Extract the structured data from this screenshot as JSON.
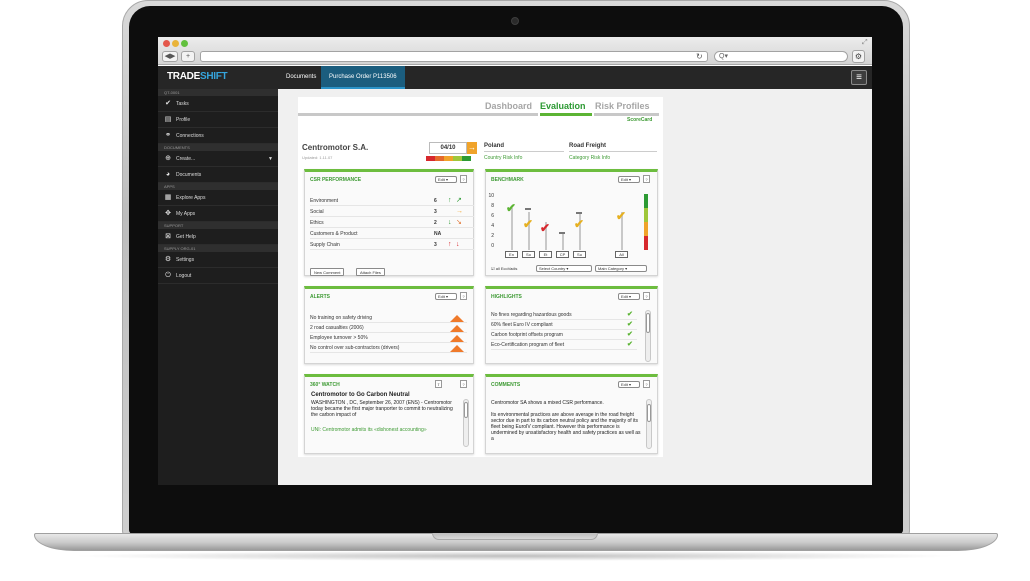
{
  "app": {
    "logo_main": "TRADE",
    "logo_accent": "SHIFT",
    "tabs": [
      "Documents",
      "Purchase Order P113506"
    ]
  },
  "sidebar": {
    "sections": [
      "QT-0001",
      "DOCUMENTS",
      "APPS",
      "SUPPORT",
      "SUPPLY ORG-01"
    ],
    "items": [
      "Tasks",
      "Profile",
      "Connections",
      "Create...",
      "Documents",
      "Explore Apps",
      "My Apps",
      "Get Help",
      "Settings",
      "Logout"
    ]
  },
  "scorecard": {
    "tabs": [
      "Dashboard",
      "Evaluation",
      "Risk Profiles"
    ],
    "active_tab": "Evaluation",
    "subtitle": "ScoreCard",
    "company": "Centromotor S.A.",
    "updated": "Updated: 1.11.07",
    "score": "04/10",
    "country_label": "Poland",
    "country_link": "Country Risk Info",
    "category_label": "Road Freight",
    "category_link": "Category Risk Info"
  },
  "csr": {
    "title": "CSR PERFORMANCE",
    "edit": "Edit",
    "rows": [
      {
        "label": "Environment",
        "score": "6",
        "t1": "↑",
        "t2": "↗",
        "c1": "#2c9a33",
        "c2": "#2c9a33"
      },
      {
        "label": "Social",
        "score": "3",
        "t1": "",
        "t2": "→",
        "c1": "#f0a32a",
        "c2": "#f0a32a"
      },
      {
        "label": "Ethics",
        "score": "2",
        "t1": "↓",
        "t2": "↘",
        "c1": "#2c9a33",
        "c2": "#e0702b"
      },
      {
        "label": "Customers & Product",
        "score": "NA",
        "t1": "",
        "t2": "",
        "c1": "#333",
        "c2": "#333"
      },
      {
        "label": "Supply Chain",
        "score": "3",
        "t1": "↑",
        "t2": "↓",
        "c1": "#d7282d",
        "c2": "#d7282d"
      }
    ],
    "new_comment": "New Comment",
    "attach_files": "Attach Files"
  },
  "benchmark": {
    "title": "BENCHMARK",
    "edit": "Edit",
    "axis": [
      "10",
      "8",
      "6",
      "4",
      "2",
      "0"
    ],
    "columns": [
      "En",
      "So",
      "Et",
      "CP",
      "Su",
      "All"
    ],
    "all_ecovadis": "all EcoVadis",
    "select_country": "Select Country",
    "main_category": "Main Category"
  },
  "alerts": {
    "title": "ALERTS",
    "edit": "Edit",
    "items": [
      "No training on safety driving",
      "2 road casualties (2006)",
      "Employee turnover > 50%",
      "No control over sub-contractors (drivers)"
    ]
  },
  "highlights": {
    "title": "HIGHLIGHTS",
    "edit": "Edit",
    "items": [
      "No fines regarding hazardous goods",
      "60% fleet Euro IV compliant",
      "Carbon footprint offsets program",
      "Eco-Certification program of fleet"
    ]
  },
  "watch": {
    "title": "360° WATCH",
    "headline": "Centromotor to Go Carbon Neutral",
    "body": "WASHINGTON , DC, September 26, 2007 (ENS) - Centromotor today became the first major tranporter to commit to neutralizing the carbon impact of",
    "link": "UNI: Centromotor admits its «dishonest accounting»"
  },
  "comments": {
    "title": "COMMENTS",
    "edit": "Edit",
    "p1": "Centromotor SA shows a mixed CSR performance.",
    "p2": "Its environmental practices are above average in the road freight sector due in part to its carbon neutral policy and the majority of its fleet being EuroIV compliant. However this performance is undermined by unsatisfactory health and safety practices as well as a"
  }
}
